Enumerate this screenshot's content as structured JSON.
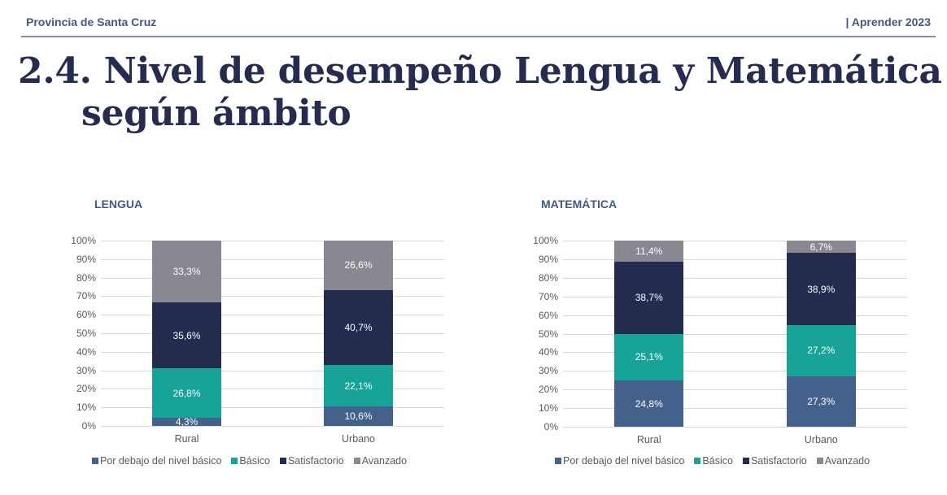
{
  "header": {
    "left": "Provincia de Santa Cruz",
    "right": "| Aprender 2023"
  },
  "title": {
    "line1": "2.4. Nivel de desempeño Lengua y Matemática",
    "line2": "según ámbito"
  },
  "colors": {
    "por_debajo": "#44618b",
    "basico": "#17a398",
    "satisfactorio": "#232b4f",
    "avanzado": "#898790"
  },
  "legend": [
    "Por debajo del nivel básico",
    "Básico",
    "Satisfactorio",
    "Avanzado"
  ],
  "y_ticks": [
    "100%",
    "90%",
    "80%",
    "70%",
    "60%",
    "50%",
    "40%",
    "30%",
    "20%",
    "10%",
    "0%"
  ],
  "chart_data": [
    {
      "type": "bar",
      "stacked": true,
      "title": "LENGUA",
      "categories": [
        "Rural",
        "Urbano"
      ],
      "series": [
        {
          "name": "Por debajo del nivel básico",
          "values": [
            4.3,
            10.6
          ],
          "labels": [
            "4,3%",
            "10,6%"
          ]
        },
        {
          "name": "Básico",
          "values": [
            26.8,
            22.1
          ],
          "labels": [
            "26,8%",
            "22,1%"
          ]
        },
        {
          "name": "Satisfactorio",
          "values": [
            35.6,
            40.7
          ],
          "labels": [
            "35,6%",
            "40,7%"
          ]
        },
        {
          "name": "Avanzado",
          "values": [
            33.3,
            26.6
          ],
          "labels": [
            "33,3%",
            "26,6%"
          ]
        }
      ],
      "xlabel": "",
      "ylabel": "",
      "ylim": [
        0,
        100
      ],
      "grid": true,
      "legend_position": "bottom"
    },
    {
      "type": "bar",
      "stacked": true,
      "title": "MATEMÁTICA",
      "categories": [
        "Rural",
        "Urbano"
      ],
      "series": [
        {
          "name": "Por debajo del nivel básico",
          "values": [
            24.8,
            27.3
          ],
          "labels": [
            "24,8%",
            "27,3%"
          ]
        },
        {
          "name": "Básico",
          "values": [
            25.1,
            27.2
          ],
          "labels": [
            "25,1%",
            "27,2%"
          ]
        },
        {
          "name": "Satisfactorio",
          "values": [
            38.7,
            38.9
          ],
          "labels": [
            "38,7%",
            "38,9%"
          ]
        },
        {
          "name": "Avanzado",
          "values": [
            11.4,
            6.7
          ],
          "labels": [
            "11,4%",
            "6,7%"
          ]
        }
      ],
      "xlabel": "",
      "ylabel": "",
      "ylim": [
        0,
        100
      ],
      "grid": true,
      "legend_position": "bottom"
    }
  ]
}
